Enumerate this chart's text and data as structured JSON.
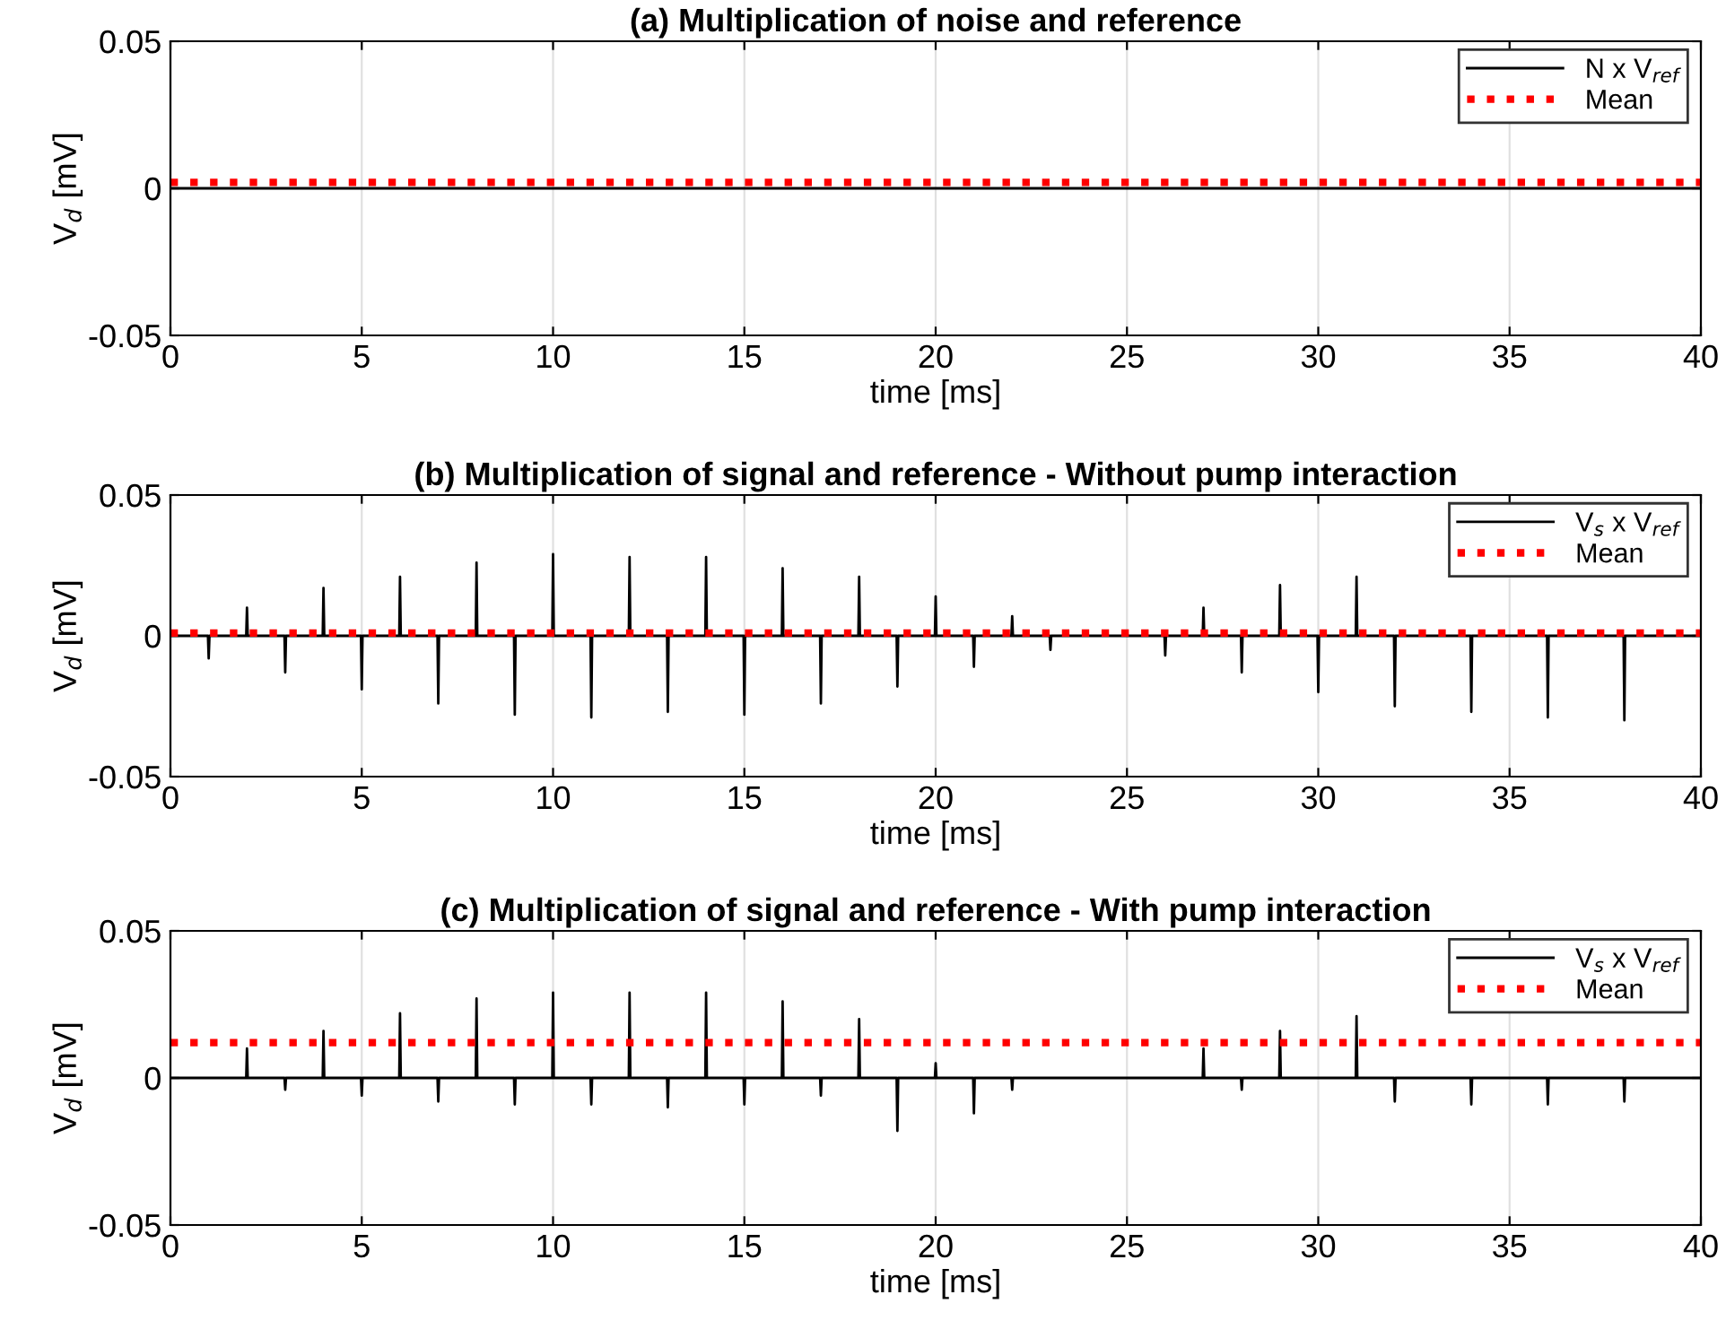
{
  "chart_data": [
    {
      "type": "line",
      "title": "(a) Multiplication of noise and reference",
      "xlabel": "time [ms]",
      "ylabel": "V$_{d}$ [mV]",
      "xlim": [
        0,
        40
      ],
      "ylim": [
        -0.05,
        0.05
      ],
      "xticks": [
        0,
        5,
        10,
        15,
        20,
        25,
        30,
        35,
        40
      ],
      "yticks": [
        -0.05,
        0,
        0.05
      ],
      "grid": "x",
      "legend": "top right",
      "series": [
        {
          "name": "N x V$_{ref}$",
          "color": "#000000",
          "line_style": "solid",
          "x": [
            0,
            10,
            20,
            30,
            40
          ],
          "values": [
            0,
            0,
            0,
            0,
            0
          ]
        },
        {
          "name": "Mean",
          "color": "#ff0000",
          "line_style": "dotted",
          "x": [
            0,
            40
          ],
          "values": [
            0.002,
            0.002
          ]
        }
      ]
    },
    {
      "type": "line",
      "title": "(b) Multiplication of signal and reference - Without pump interaction",
      "xlabel": "time [ms]",
      "ylabel": "V$_{d}$ [mV]",
      "xlim": [
        0,
        40
      ],
      "ylim": [
        -0.05,
        0.05
      ],
      "xticks": [
        0,
        5,
        10,
        15,
        20,
        25,
        30,
        35,
        40
      ],
      "yticks": [
        -0.05,
        0,
        0.05
      ],
      "grid": "x",
      "legend": "top right",
      "series": [
        {
          "name": "V$_{s}$ x V$_{ref}$",
          "color": "#000000",
          "line_style": "solid",
          "x": [
            0,
            0.98,
            1,
            1.02,
            1.98,
            2,
            2.02,
            2.98,
            3,
            3.02,
            3.98,
            4,
            4.02,
            4.98,
            5,
            5.02,
            5.98,
            6,
            6.02,
            6.98,
            7,
            7.02,
            7.98,
            8,
            8.02,
            8.98,
            9,
            9.02,
            9.98,
            10,
            10.02,
            10.98,
            11,
            11.02,
            11.98,
            12,
            12.02,
            12.98,
            13,
            13.02,
            13.98,
            14,
            14.02,
            14.98,
            15,
            15.02,
            15.98,
            16,
            16.02,
            16.98,
            17,
            17.02,
            17.98,
            18,
            18.02,
            18.98,
            19,
            19.02,
            19.98,
            20,
            20.02,
            20.98,
            21,
            21.02,
            21.98,
            22,
            22.02,
            22.98,
            23,
            23.02,
            24,
            25,
            25.98,
            26,
            26.02,
            26.98,
            27,
            27.02,
            27.98,
            28,
            28.02,
            28.98,
            29,
            29.02,
            29.98,
            30,
            30.02,
            30.98,
            31,
            31.02,
            31.98,
            32,
            32.02,
            33,
            33.98,
            34,
            34.02,
            35,
            35.98,
            36,
            36.02,
            37,
            37.98,
            38,
            38.02,
            39,
            40
          ],
          "values": [
            0,
            0,
            -0.008,
            0,
            0,
            0.01,
            0,
            0,
            -0.013,
            0,
            0,
            0.017,
            0,
            0,
            -0.019,
            0,
            0,
            0.021,
            0,
            0,
            -0.024,
            0,
            0,
            0.026,
            0,
            0,
            -0.028,
            0,
            0,
            0.029,
            0,
            0,
            -0.029,
            0,
            0,
            0.028,
            0,
            0,
            -0.027,
            0,
            0,
            0.028,
            0,
            0,
            -0.028,
            0,
            0,
            0.024,
            0,
            0,
            -0.024,
            0,
            0,
            0.021,
            0,
            0,
            -0.018,
            0,
            0,
            0.014,
            0,
            0,
            -0.011,
            0,
            0,
            0.007,
            0,
            0,
            -0.005,
            0,
            0,
            0,
            0,
            -0.007,
            0,
            0,
            0.01,
            0,
            0,
            -0.013,
            0,
            0,
            0.018,
            0,
            0,
            -0.02,
            0,
            0,
            0.021,
            0,
            0,
            -0.025,
            0,
            0,
            0,
            -0.027,
            0,
            0,
            0,
            -0.029,
            0,
            0,
            0,
            -0.03,
            0,
            0,
            0
          ]
        },
        {
          "name": "Mean",
          "color": "#ff0000",
          "line_style": "dotted",
          "x": [
            0,
            40
          ],
          "values": [
            0.001,
            0.001
          ]
        }
      ]
    },
    {
      "type": "line",
      "title": "(c) Multiplication of signal and reference - With pump interaction",
      "xlabel": "time [ms]",
      "ylabel": "V$_{d}$ [mV]",
      "xlim": [
        0,
        40
      ],
      "ylim": [
        -0.05,
        0.05
      ],
      "xticks": [
        0,
        5,
        10,
        15,
        20,
        25,
        30,
        35,
        40
      ],
      "yticks": [
        -0.05,
        0,
        0.05
      ],
      "grid": "x",
      "legend": "top right",
      "series": [
        {
          "name": "V$_{s}$ x V$_{ref}$",
          "color": "#000000",
          "line_style": "solid",
          "x": [
            0,
            1,
            1.98,
            2,
            2.02,
            2.98,
            3,
            3.02,
            3.98,
            4,
            4.02,
            4.98,
            5,
            5.02,
            5.98,
            6,
            6.02,
            6.98,
            7,
            7.02,
            7.98,
            8,
            8.02,
            8.98,
            9,
            9.02,
            9.98,
            10,
            10.02,
            10.98,
            11,
            11.02,
            11.98,
            12,
            12.02,
            12.98,
            13,
            13.02,
            13.98,
            14,
            14.02,
            14.98,
            15,
            15.02,
            15.98,
            16,
            16.02,
            16.98,
            17,
            17.02,
            17.98,
            18,
            18.02,
            18.98,
            19,
            19.02,
            19.98,
            20,
            20.02,
            20.98,
            21,
            21.02,
            21.98,
            22,
            22.02,
            23,
            24,
            25,
            26,
            26.98,
            27,
            27.02,
            27.98,
            28,
            28.02,
            28.98,
            29,
            29.02,
            30,
            30.98,
            31,
            31.02,
            31.98,
            32,
            32.02,
            33,
            33.98,
            34,
            34.02,
            35,
            35.98,
            36,
            36.02,
            37,
            37.98,
            38,
            38.02,
            39,
            40
          ],
          "values": [
            0,
            0,
            0,
            0.01,
            0,
            0,
            -0.004,
            0,
            0,
            0.016,
            0,
            0,
            -0.006,
            0,
            0,
            0.022,
            0,
            0,
            -0.008,
            0,
            0,
            0.027,
            0,
            0,
            -0.009,
            0,
            0,
            0.029,
            0,
            0,
            -0.009,
            0,
            0,
            0.029,
            0,
            0,
            -0.01,
            0,
            0,
            0.029,
            0,
            0,
            -0.009,
            0,
            0,
            0.026,
            0,
            0,
            -0.006,
            0,
            0,
            0.02,
            0,
            0,
            -0.018,
            0,
            0,
            0.005,
            0,
            0,
            -0.012,
            0,
            0,
            -0.004,
            0,
            0,
            0,
            0,
            0,
            0,
            0.01,
            0,
            0,
            -0.004,
            0,
            0,
            0.016,
            0,
            0,
            0,
            0.021,
            0,
            0,
            -0.008,
            0,
            0,
            0,
            -0.009,
            0,
            0,
            0,
            -0.009,
            0,
            0,
            0,
            -0.008,
            0,
            0,
            0
          ]
        },
        {
          "name": "Mean",
          "color": "#ff0000",
          "line_style": "dotted",
          "x": [
            0,
            40
          ],
          "values": [
            0.012,
            0.012
          ]
        }
      ]
    }
  ]
}
